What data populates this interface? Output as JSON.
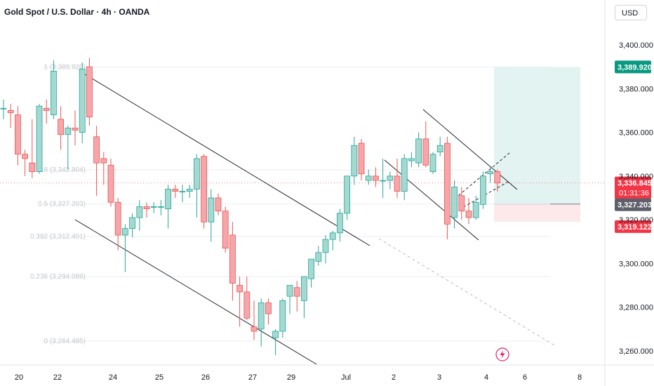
{
  "header": {
    "title": "Gold Spot / U.S. Dollar · 4h · OANDA",
    "currency": "USD"
  },
  "chart_data": {
    "type": "candlestick",
    "ylim": [
      3252,
      3428
    ],
    "y_ticks": [
      3260,
      3280,
      3300,
      3320,
      3340,
      3360,
      3380,
      3400
    ],
    "y_tick_labels": [
      "3,260.000",
      "3,280.000",
      "3,300.000",
      "3,320.000",
      "3,340.000",
      "3,360.000",
      "3,380.000",
      "3,400.000"
    ],
    "x_labels": [
      "20",
      "22",
      "24",
      "25",
      "26",
      "27",
      "29",
      "Jul",
      "2",
      "3",
      "4",
      "6",
      "8"
    ],
    "fib_labels": [
      {
        "text": "1 (3,389.920)",
        "value": 3389.92
      },
      {
        "text": "0.618 (3,342.804)",
        "value": 3342.804
      },
      {
        "text": "0.5 (3,327.203)",
        "value": 3327.203
      },
      {
        "text": "0.382 (3,312.401)",
        "value": 3312.401
      },
      {
        "text": "0.236 (3,294.088)",
        "value": 3294.088
      },
      {
        "text": "0 (3,264.485)",
        "value": 3264.485
      }
    ],
    "price_badges": {
      "target": {
        "text": "3,389.920",
        "value": 3389.92,
        "color": "#089981"
      },
      "last": {
        "text": "3,336.845",
        "countdown": "01:31:36",
        "value": 3336.845,
        "color": "#f23645"
      },
      "entry": {
        "text": "3,327.203",
        "value": 3327.203,
        "color": "#5d606b"
      },
      "stop": {
        "text": "3,319.122",
        "value": 3319.122,
        "color": "#f23645"
      }
    },
    "candles": [
      {
        "o": 3371,
        "h": 3375,
        "l": 3366,
        "c": 3371
      },
      {
        "o": 3370,
        "h": 3373,
        "l": 3362,
        "c": 3369
      },
      {
        "o": 3368,
        "h": 3372,
        "l": 3345,
        "c": 3350
      },
      {
        "o": 3350,
        "h": 3352,
        "l": 3340,
        "c": 3348
      },
      {
        "o": 3346,
        "h": 3366,
        "l": 3339,
        "c": 3342
      },
      {
        "o": 3342,
        "h": 3373,
        "l": 3341,
        "c": 3372
      },
      {
        "o": 3371,
        "h": 3375,
        "l": 3364,
        "c": 3370
      },
      {
        "o": 3368,
        "h": 3393,
        "l": 3366,
        "c": 3388
      },
      {
        "o": 3366,
        "h": 3372,
        "l": 3352,
        "c": 3359
      },
      {
        "o": 3359,
        "h": 3363,
        "l": 3343,
        "c": 3362
      },
      {
        "o": 3362,
        "h": 3370,
        "l": 3354,
        "c": 3361
      },
      {
        "o": 3360,
        "h": 3392,
        "l": 3355,
        "c": 3389
      },
      {
        "o": 3390,
        "h": 3394,
        "l": 3363,
        "c": 3367
      },
      {
        "o": 3358,
        "h": 3363,
        "l": 3331,
        "c": 3346
      },
      {
        "o": 3348,
        "h": 3351,
        "l": 3336,
        "c": 3346
      },
      {
        "o": 3345,
        "h": 3348,
        "l": 3326,
        "c": 3328
      },
      {
        "o": 3328,
        "h": 3330,
        "l": 3306,
        "c": 3313
      },
      {
        "o": 3313,
        "h": 3318,
        "l": 3296,
        "c": 3316
      },
      {
        "o": 3316,
        "h": 3323,
        "l": 3312,
        "c": 3321
      },
      {
        "o": 3321,
        "h": 3329,
        "l": 3315,
        "c": 3326
      },
      {
        "o": 3326,
        "h": 3328,
        "l": 3321,
        "c": 3325
      },
      {
        "o": 3326,
        "h": 3328,
        "l": 3323,
        "c": 3326
      },
      {
        "o": 3326,
        "h": 3329,
        "l": 3322,
        "c": 3326
      },
      {
        "o": 3325,
        "h": 3336,
        "l": 3316,
        "c": 3334
      },
      {
        "o": 3334,
        "h": 3336,
        "l": 3330,
        "c": 3333
      },
      {
        "o": 3333,
        "h": 3336,
        "l": 3328,
        "c": 3333
      },
      {
        "o": 3333,
        "h": 3336,
        "l": 3330,
        "c": 3334
      },
      {
        "o": 3334,
        "h": 3350,
        "l": 3321,
        "c": 3348
      },
      {
        "o": 3349,
        "h": 3350,
        "l": 3316,
        "c": 3319
      },
      {
        "o": 3319,
        "h": 3334,
        "l": 3310,
        "c": 3330
      },
      {
        "o": 3330,
        "h": 3332,
        "l": 3322,
        "c": 3324
      },
      {
        "o": 3324,
        "h": 3326,
        "l": 3305,
        "c": 3307
      },
      {
        "o": 3313,
        "h": 3319,
        "l": 3283,
        "c": 3291
      },
      {
        "o": 3290,
        "h": 3294,
        "l": 3271,
        "c": 3287
      },
      {
        "o": 3287,
        "h": 3294,
        "l": 3274,
        "c": 3275
      },
      {
        "o": 3271,
        "h": 3283,
        "l": 3265,
        "c": 3269
      },
      {
        "o": 3270,
        "h": 3284,
        "l": 3262,
        "c": 3282
      },
      {
        "o": 3282,
        "h": 3284,
        "l": 3272,
        "c": 3277
      },
      {
        "o": 3266,
        "h": 3270,
        "l": 3258,
        "c": 3269
      },
      {
        "o": 3269,
        "h": 3284,
        "l": 3266,
        "c": 3283
      },
      {
        "o": 3285,
        "h": 3290,
        "l": 3277,
        "c": 3290
      },
      {
        "o": 3289,
        "h": 3292,
        "l": 3278,
        "c": 3285
      },
      {
        "o": 3283,
        "h": 3294,
        "l": 3275,
        "c": 3294
      },
      {
        "o": 3293,
        "h": 3302,
        "l": 3289,
        "c": 3302
      },
      {
        "o": 3301,
        "h": 3308,
        "l": 3299,
        "c": 3305
      },
      {
        "o": 3305,
        "h": 3313,
        "l": 3300,
        "c": 3311
      },
      {
        "o": 3311,
        "h": 3315,
        "l": 3306,
        "c": 3314
      },
      {
        "o": 3314,
        "h": 3325,
        "l": 3310,
        "c": 3323
      },
      {
        "o": 3323,
        "h": 3340,
        "l": 3320,
        "c": 3340
      },
      {
        "o": 3340,
        "h": 3358,
        "l": 3336,
        "c": 3354
      },
      {
        "o": 3355,
        "h": 3357,
        "l": 3338,
        "c": 3341
      },
      {
        "o": 3338,
        "h": 3343,
        "l": 3336,
        "c": 3340
      },
      {
        "o": 3340,
        "h": 3344,
        "l": 3335,
        "c": 3338
      },
      {
        "o": 3338,
        "h": 3348,
        "l": 3330,
        "c": 3338
      },
      {
        "o": 3338,
        "h": 3342,
        "l": 3334,
        "c": 3340
      },
      {
        "o": 3340,
        "h": 3348,
        "l": 3330,
        "c": 3333
      },
      {
        "o": 3333,
        "h": 3350,
        "l": 3329,
        "c": 3348
      },
      {
        "o": 3347,
        "h": 3351,
        "l": 3344,
        "c": 3348
      },
      {
        "o": 3346,
        "h": 3360,
        "l": 3344,
        "c": 3357
      },
      {
        "o": 3357,
        "h": 3365,
        "l": 3344,
        "c": 3345
      },
      {
        "o": 3342,
        "h": 3351,
        "l": 3341,
        "c": 3350
      },
      {
        "o": 3351,
        "h": 3358,
        "l": 3349,
        "c": 3354
      },
      {
        "o": 3355,
        "h": 3358,
        "l": 3311,
        "c": 3318
      },
      {
        "o": 3321,
        "h": 3338,
        "l": 3316,
        "c": 3335
      },
      {
        "o": 3331,
        "h": 3335,
        "l": 3320,
        "c": 3324
      },
      {
        "o": 3324,
        "h": 3330,
        "l": 3318,
        "c": 3321
      },
      {
        "o": 3321,
        "h": 3331,
        "l": 3320,
        "c": 3328
      },
      {
        "o": 3327,
        "h": 3342,
        "l": 3325,
        "c": 3340
      },
      {
        "o": 3341,
        "h": 3344,
        "l": 3337,
        "c": 3342
      },
      {
        "o": 3342,
        "h": 3343,
        "l": 3333,
        "c": 3336.845
      }
    ]
  }
}
